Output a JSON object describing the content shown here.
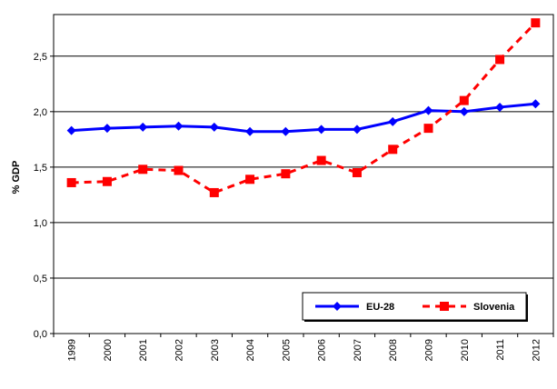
{
  "chart_data": {
    "type": "line",
    "ylabel": "% GDP",
    "ylim": [
      0,
      2.875
    ],
    "yticks": [
      "0,0",
      "0,5",
      "1,0",
      "1,5",
      "2,0",
      "2,5"
    ],
    "ytick_values": [
      0,
      0.5,
      1.0,
      1.5,
      2.0,
      2.5
    ],
    "categories": [
      "1999",
      "2000",
      "2001",
      "2002",
      "2003",
      "2004",
      "2005",
      "2006",
      "2007",
      "2008",
      "2009",
      "2010",
      "2011",
      "2012"
    ],
    "grid": "horizontal",
    "legend_position": "bottom-right",
    "series": [
      {
        "name": "EU-28",
        "color": "#0000ff",
        "line_style": "solid",
        "marker": "diamond",
        "values": [
          1.83,
          1.85,
          1.86,
          1.87,
          1.86,
          1.82,
          1.82,
          1.84,
          1.84,
          1.91,
          2.01,
          2.0,
          2.04,
          2.07
        ]
      },
      {
        "name": "Slovenia",
        "color": "#ff0000",
        "line_style": "dashed",
        "marker": "square",
        "values": [
          1.36,
          1.37,
          1.48,
          1.47,
          1.27,
          1.39,
          1.44,
          1.56,
          1.45,
          1.66,
          1.85,
          2.1,
          2.47,
          2.8
        ]
      }
    ]
  }
}
